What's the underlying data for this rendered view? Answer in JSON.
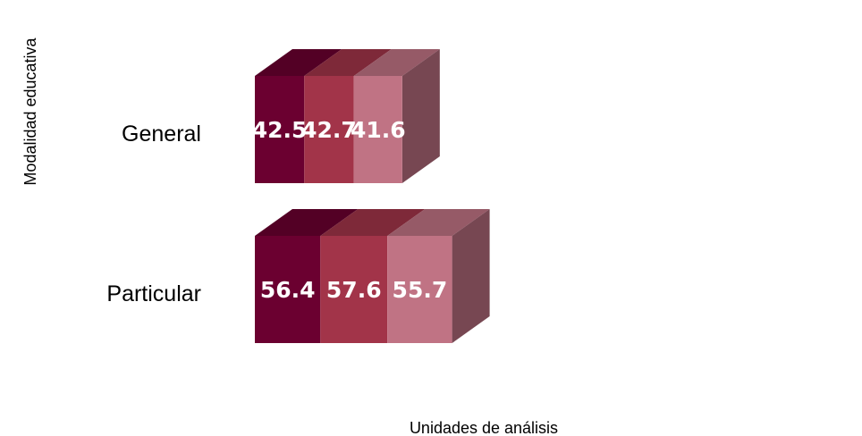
{
  "chart_data": {
    "type": "bar",
    "orientation": "horizontal",
    "stacked": true,
    "three_d": true,
    "title": "",
    "xlabel": "Unidades de análisis",
    "ylabel": "Modalidad educativa",
    "categories": [
      "General",
      "Particular"
    ],
    "series": [
      {
        "color": "#6b0030",
        "values": [
          42.5,
          56.4
        ]
      },
      {
        "color": "#a23449",
        "values": [
          42.7,
          57.6
        ]
      },
      {
        "color": "#c07384",
        "values": [
          41.6,
          55.7
        ]
      }
    ],
    "data_labels": [
      [
        "42.5",
        "42.7",
        "41.6"
      ],
      [
        "56.4",
        "57.6",
        "55.7"
      ]
    ],
    "grid": false,
    "legend": "none"
  }
}
